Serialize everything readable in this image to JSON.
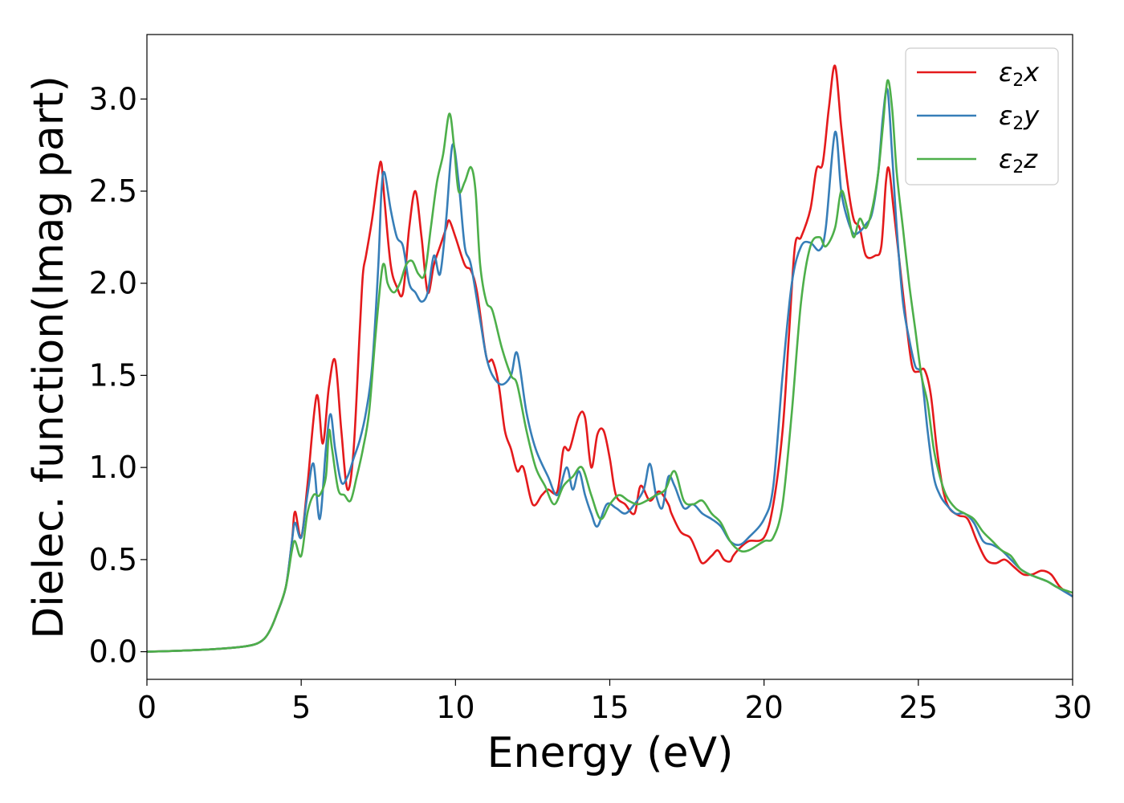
{
  "chart_data": {
    "type": "line",
    "xlabel": "Energy (eV)",
    "ylabel": "Dielec. function(Imag part)",
    "xlim": [
      0,
      30
    ],
    "ylim": [
      -0.15,
      3.35
    ],
    "xticks": [
      0,
      5,
      10,
      15,
      20,
      25,
      30
    ],
    "yticks": [
      0.0,
      0.5,
      1.0,
      1.5,
      2.0,
      2.5,
      3.0
    ],
    "xtick_labels": [
      "0",
      "5",
      "10",
      "15",
      "20",
      "25",
      "30"
    ],
    "ytick_labels": [
      "0.0",
      "0.5",
      "1.0",
      "1.5",
      "2.0",
      "2.5",
      "3.0"
    ],
    "legend_placement": "top-right",
    "grid": false,
    "series": [
      {
        "name": "ε2x",
        "legend_main": "ε",
        "legend_sub": "2",
        "legend_var": "x",
        "color": "#e41a1c",
        "x": [
          0,
          1,
          2,
          3,
          3.5,
          3.8,
          4.0,
          4.2,
          4.5,
          4.7,
          4.8,
          5.0,
          5.2,
          5.5,
          5.7,
          5.9,
          6.1,
          6.3,
          6.5,
          6.7,
          6.9,
          7.0,
          7.1,
          7.3,
          7.5,
          7.6,
          7.7,
          7.9,
          8.1,
          8.3,
          8.5,
          8.7,
          8.9,
          9.1,
          9.3,
          9.5,
          9.7,
          9.8,
          10.0,
          10.3,
          10.5,
          10.7,
          11.0,
          11.2,
          11.4,
          11.6,
          11.8,
          12.0,
          12.2,
          12.5,
          12.8,
          13.0,
          13.3,
          13.5,
          13.7,
          14.0,
          14.2,
          14.4,
          14.6,
          14.8,
          15.0,
          15.2,
          15.5,
          15.8,
          16.0,
          16.3,
          16.6,
          16.9,
          17.0,
          17.3,
          17.6,
          17.8,
          18.0,
          18.3,
          18.5,
          18.7,
          18.9,
          19.0,
          19.2,
          19.5,
          20.0,
          20.3,
          20.6,
          20.8,
          21.0,
          21.2,
          21.5,
          21.7,
          21.9,
          22.1,
          22.3,
          22.5,
          22.7,
          22.9,
          23.1,
          23.3,
          23.6,
          23.8,
          23.95,
          24.05,
          24.2,
          24.4,
          24.6,
          24.8,
          25.0,
          25.2,
          25.4,
          25.6,
          25.8,
          26.0,
          26.3,
          26.6,
          26.9,
          27.2,
          27.5,
          27.8,
          28.1,
          28.4,
          28.7,
          29.0,
          29.3,
          29.6,
          30.0
        ],
        "y": [
          0.0,
          0.005,
          0.012,
          0.025,
          0.04,
          0.07,
          0.12,
          0.2,
          0.35,
          0.6,
          0.76,
          0.62,
          0.9,
          1.39,
          1.13,
          1.44,
          1.58,
          1.2,
          0.88,
          1.1,
          1.75,
          2.05,
          2.15,
          2.35,
          2.6,
          2.65,
          2.45,
          2.1,
          1.98,
          1.95,
          2.3,
          2.5,
          2.25,
          1.95,
          2.1,
          2.2,
          2.3,
          2.34,
          2.25,
          2.1,
          2.07,
          1.95,
          1.6,
          1.58,
          1.45,
          1.2,
          1.1,
          0.98,
          1.0,
          0.8,
          0.85,
          0.88,
          0.87,
          1.1,
          1.1,
          1.28,
          1.27,
          1.0,
          1.18,
          1.2,
          1.05,
          0.85,
          0.8,
          0.75,
          0.9,
          0.82,
          0.87,
          0.8,
          0.75,
          0.65,
          0.62,
          0.55,
          0.48,
          0.52,
          0.55,
          0.5,
          0.49,
          0.52,
          0.56,
          0.6,
          0.62,
          0.8,
          1.2,
          1.7,
          2.2,
          2.25,
          2.4,
          2.62,
          2.65,
          2.95,
          3.18,
          2.85,
          2.55,
          2.35,
          2.3,
          2.15,
          2.15,
          2.2,
          2.55,
          2.62,
          2.4,
          2.1,
          1.8,
          1.55,
          1.52,
          1.53,
          1.4,
          1.1,
          0.88,
          0.78,
          0.74,
          0.72,
          0.6,
          0.5,
          0.48,
          0.5,
          0.46,
          0.42,
          0.42,
          0.44,
          0.42,
          0.35,
          0.3
        ]
      },
      {
        "name": "ε2y",
        "legend_main": "ε",
        "legend_sub": "2",
        "legend_var": "y",
        "color": "#377eb8",
        "x": [
          0,
          1,
          2,
          3,
          3.5,
          3.8,
          4.0,
          4.2,
          4.5,
          4.7,
          4.8,
          5.0,
          5.2,
          5.4,
          5.6,
          5.8,
          5.95,
          6.1,
          6.3,
          6.5,
          6.7,
          6.9,
          7.1,
          7.3,
          7.5,
          7.6,
          7.7,
          7.9,
          8.1,
          8.3,
          8.5,
          8.7,
          8.9,
          9.1,
          9.3,
          9.5,
          9.7,
          9.9,
          10.1,
          10.3,
          10.5,
          10.8,
          11.0,
          11.2,
          11.5,
          11.8,
          12.0,
          12.3,
          12.6,
          13.0,
          13.3,
          13.6,
          13.8,
          14.0,
          14.2,
          14.4,
          14.6,
          14.9,
          15.2,
          15.5,
          15.8,
          16.1,
          16.3,
          16.5,
          16.7,
          16.9,
          17.1,
          17.4,
          17.7,
          18.0,
          18.3,
          18.6,
          18.9,
          19.2,
          19.5,
          20.0,
          20.3,
          20.6,
          20.9,
          21.2,
          21.5,
          21.8,
          22.0,
          22.3,
          22.5,
          22.7,
          22.9,
          23.1,
          23.3,
          23.5,
          23.7,
          23.85,
          24.0,
          24.15,
          24.3,
          24.5,
          24.7,
          24.9,
          25.1,
          25.3,
          25.5,
          25.7,
          25.9,
          26.2,
          26.5,
          26.8,
          27.1,
          27.4,
          27.7,
          28.0,
          28.3,
          28.6,
          28.9,
          29.2,
          29.5,
          30.0
        ],
        "y": [
          0.0,
          0.005,
          0.012,
          0.025,
          0.04,
          0.07,
          0.12,
          0.2,
          0.35,
          0.6,
          0.7,
          0.62,
          0.85,
          1.02,
          0.72,
          1.1,
          1.29,
          1.1,
          0.92,
          0.95,
          1.05,
          1.15,
          1.3,
          1.55,
          2.1,
          2.5,
          2.6,
          2.4,
          2.25,
          2.2,
          2.0,
          1.95,
          1.9,
          1.95,
          2.15,
          2.05,
          2.35,
          2.75,
          2.55,
          2.2,
          2.1,
          1.8,
          1.6,
          1.5,
          1.45,
          1.5,
          1.62,
          1.3,
          1.1,
          0.95,
          0.85,
          1.0,
          0.88,
          0.98,
          0.85,
          0.75,
          0.68,
          0.8,
          0.78,
          0.75,
          0.8,
          0.88,
          1.02,
          0.85,
          0.78,
          0.95,
          0.9,
          0.78,
          0.8,
          0.75,
          0.72,
          0.68,
          0.6,
          0.58,
          0.62,
          0.72,
          0.9,
          1.5,
          2.0,
          2.2,
          2.22,
          2.18,
          2.3,
          2.82,
          2.5,
          2.35,
          2.27,
          2.28,
          2.32,
          2.38,
          2.6,
          2.9,
          3.05,
          2.7,
          2.3,
          1.9,
          1.7,
          1.55,
          1.5,
          1.2,
          0.95,
          0.85,
          0.8,
          0.75,
          0.75,
          0.7,
          0.6,
          0.58,
          0.55,
          0.5,
          0.45,
          0.42,
          0.4,
          0.38,
          0.35,
          0.3
        ]
      },
      {
        "name": "ε2z",
        "legend_main": "ε",
        "legend_sub": "2",
        "legend_var": "z",
        "color": "#4daf4a",
        "x": [
          0,
          1,
          2,
          3,
          3.5,
          3.8,
          4.0,
          4.2,
          4.5,
          4.7,
          4.8,
          5.0,
          5.2,
          5.4,
          5.6,
          5.8,
          5.9,
          6.0,
          6.2,
          6.4,
          6.6,
          6.8,
          7.0,
          7.2,
          7.4,
          7.6,
          7.7,
          7.8,
          8.0,
          8.2,
          8.4,
          8.6,
          8.8,
          9.0,
          9.2,
          9.4,
          9.6,
          9.8,
          9.95,
          10.1,
          10.3,
          10.5,
          10.65,
          10.8,
          11.0,
          11.2,
          11.5,
          11.8,
          12.0,
          12.3,
          12.6,
          12.9,
          13.2,
          13.5,
          13.8,
          14.1,
          14.4,
          14.7,
          15.0,
          15.3,
          15.6,
          15.9,
          16.2,
          16.5,
          16.8,
          17.1,
          17.4,
          17.7,
          18.0,
          18.3,
          18.6,
          18.9,
          19.2,
          19.5,
          20.0,
          20.3,
          20.6,
          20.9,
          21.2,
          21.5,
          21.8,
          22.0,
          22.3,
          22.5,
          22.7,
          22.9,
          23.1,
          23.3,
          23.5,
          23.7,
          23.85,
          24.0,
          24.15,
          24.3,
          24.5,
          24.7,
          24.9,
          25.1,
          25.3,
          25.5,
          25.7,
          25.9,
          26.2,
          26.5,
          26.8,
          27.1,
          27.4,
          27.7,
          28.0,
          28.3,
          28.6,
          28.9,
          29.2,
          29.5,
          30.0
        ],
        "y": [
          0.0,
          0.005,
          0.012,
          0.025,
          0.04,
          0.07,
          0.12,
          0.2,
          0.35,
          0.55,
          0.6,
          0.52,
          0.75,
          0.85,
          0.85,
          0.95,
          1.2,
          1.1,
          0.88,
          0.85,
          0.82,
          0.95,
          1.1,
          1.3,
          1.7,
          2.05,
          2.1,
          2.0,
          1.95,
          2.0,
          2.1,
          2.12,
          2.05,
          2.05,
          2.3,
          2.55,
          2.7,
          2.92,
          2.75,
          2.5,
          2.55,
          2.63,
          2.5,
          2.1,
          1.9,
          1.85,
          1.65,
          1.5,
          1.45,
          1.2,
          1.0,
          0.9,
          0.8,
          0.9,
          0.95,
          1.0,
          0.85,
          0.72,
          0.8,
          0.85,
          0.82,
          0.8,
          0.82,
          0.85,
          0.88,
          0.98,
          0.82,
          0.8,
          0.82,
          0.75,
          0.7,
          0.6,
          0.55,
          0.55,
          0.6,
          0.62,
          0.8,
          1.3,
          1.9,
          2.2,
          2.25,
          2.2,
          2.3,
          2.5,
          2.4,
          2.25,
          2.35,
          2.3,
          2.4,
          2.6,
          2.85,
          3.1,
          2.95,
          2.6,
          2.3,
          2.0,
          1.75,
          1.5,
          1.35,
          1.1,
          0.95,
          0.85,
          0.78,
          0.75,
          0.72,
          0.65,
          0.6,
          0.55,
          0.52,
          0.45,
          0.42,
          0.4,
          0.38,
          0.35,
          0.32
        ]
      }
    ]
  }
}
